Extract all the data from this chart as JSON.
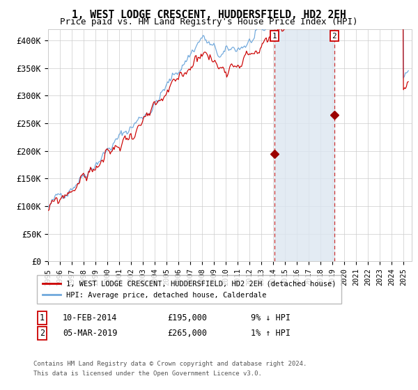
{
  "title": "1, WEST LODGE CRESCENT, HUDDERSFIELD, HD2 2EH",
  "subtitle": "Price paid vs. HM Land Registry's House Price Index (HPI)",
  "ylim": [
    0,
    420000
  ],
  "yticks": [
    0,
    50000,
    100000,
    150000,
    200000,
    250000,
    300000,
    350000,
    400000
  ],
  "ytick_labels": [
    "£0",
    "£50K",
    "£100K",
    "£150K",
    "£200K",
    "£250K",
    "£300K",
    "£350K",
    "£400K"
  ],
  "hpi_color": "#6fa8dc",
  "price_color": "#cc0000",
  "marker_color": "#9b0000",
  "highlight_color": "#dce6f1",
  "vline_color": "#cc3333",
  "point1_year": 2014.1,
  "point1_value": 195000,
  "point2_year": 2019.17,
  "point2_value": 265000,
  "legend_label1": "1, WEST LODGE CRESCENT, HUDDERSFIELD, HD2 2EH (detached house)",
  "legend_label2": "HPI: Average price, detached house, Calderdale",
  "table_row1": [
    "1",
    "10-FEB-2014",
    "£195,000",
    "9% ↓ HPI"
  ],
  "table_row2": [
    "2",
    "05-MAR-2019",
    "£265,000",
    "1% ↑ HPI"
  ],
  "footnote1": "Contains HM Land Registry data © Crown copyright and database right 2024.",
  "footnote2": "This data is licensed under the Open Government Licence v3.0.",
  "background_color": "#ffffff",
  "grid_color": "#cccccc"
}
